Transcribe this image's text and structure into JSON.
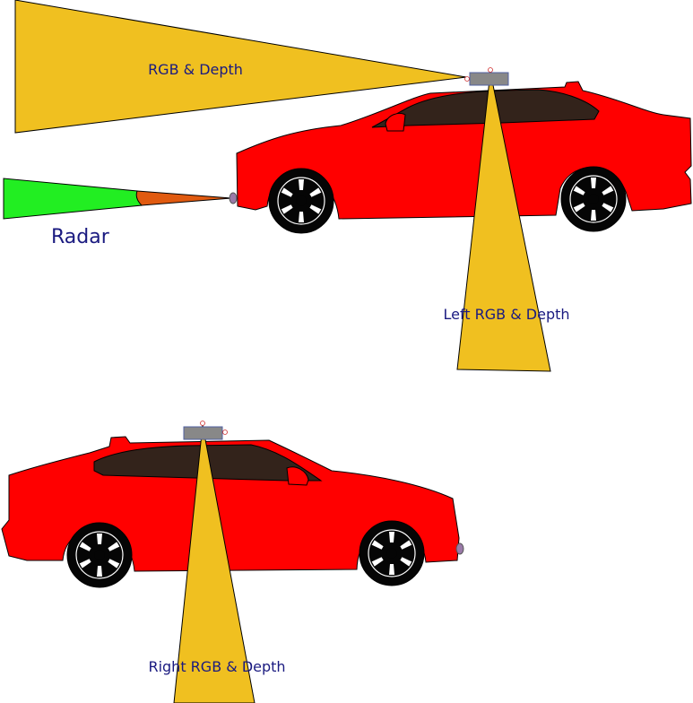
{
  "labels": {
    "top_rgb_depth": "RGB & Depth",
    "radar": "Radar",
    "left_rgb_depth": "Left RGB & Depth",
    "right_rgb_depth": "Right RGB & Depth"
  },
  "colors": {
    "car_body": "#ff0000",
    "window": "#33231b",
    "wheel": "#050505",
    "camera_fov": "#f0c020",
    "radar_near": "#e05a10",
    "radar_far": "#22ee22",
    "sensor_box": "#888888",
    "label_text": "#1a1a80"
  }
}
